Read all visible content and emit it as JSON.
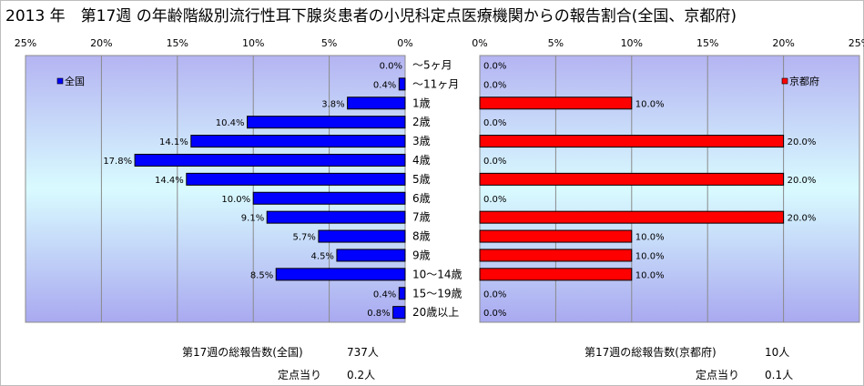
{
  "title": "2013 年　第17週 の年齢階級別流行性耳下腺炎患者の小児科定点医療機関からの報告割合(全国、京都府)",
  "chart_data": [
    {
      "type": "bar",
      "orientation": "horizontal",
      "direction": "right-to-left",
      "legend": {
        "name": "全国",
        "color": "#0000ff",
        "position": "top-left"
      },
      "categories": [
        "～5ヶ月",
        "～11ヶ月",
        "1歳",
        "2歳",
        "3歳",
        "4歳",
        "5歳",
        "6歳",
        "7歳",
        "8歳",
        "9歳",
        "10～14歳",
        "15～19歳",
        "20歳以上"
      ],
      "values": [
        0.0,
        0.4,
        3.8,
        10.4,
        14.1,
        17.8,
        14.4,
        10.0,
        9.1,
        5.7,
        4.5,
        8.5,
        0.4,
        0.8
      ],
      "labels": [
        "0.0%",
        "0.4%",
        "3.8%",
        "10.4%",
        "14.1%",
        "17.8%",
        "14.4%",
        "10.0%",
        "9.1%",
        "5.7%",
        "4.5%",
        "8.5%",
        "0.4%",
        "0.8%"
      ],
      "xlim": [
        0,
        25
      ],
      "xticks": [
        "25%",
        "20%",
        "15%",
        "10%",
        "5%",
        "0%"
      ],
      "grid": true
    },
    {
      "type": "bar",
      "orientation": "horizontal",
      "direction": "left-to-right",
      "legend": {
        "name": "京都府",
        "color": "#ff0000",
        "position": "top-right"
      },
      "categories": [
        "～5ヶ月",
        "～11ヶ月",
        "1歳",
        "2歳",
        "3歳",
        "4歳",
        "5歳",
        "6歳",
        "7歳",
        "8歳",
        "9歳",
        "10～14歳",
        "15～19歳",
        "20歳以上"
      ],
      "values": [
        0.0,
        0.0,
        10.0,
        0.0,
        20.0,
        0.0,
        20.0,
        0.0,
        20.0,
        10.0,
        10.0,
        10.0,
        0.0,
        0.0
      ],
      "labels": [
        "0.0%",
        "0.0%",
        "10.0%",
        "0.0%",
        "20.0%",
        "0.0%",
        "20.0%",
        "0.0%",
        "20.0%",
        "10.0%",
        "10.0%",
        "10.0%",
        "0.0%",
        "0.0%"
      ],
      "xlim": [
        0,
        25
      ],
      "xticks": [
        "0%",
        "5%",
        "10%",
        "15%",
        "20%",
        "25%"
      ],
      "grid": true
    }
  ],
  "footer": {
    "left_total_label": "第17週の総報告数(全国)",
    "left_total_value": "737人",
    "left_per_label": "定点当り",
    "left_per_value": "0.2人",
    "right_total_label": "第17週の総報告数(京都府)",
    "right_total_value": "10人",
    "right_per_label": "定点当り",
    "right_per_value": "0.1人"
  }
}
